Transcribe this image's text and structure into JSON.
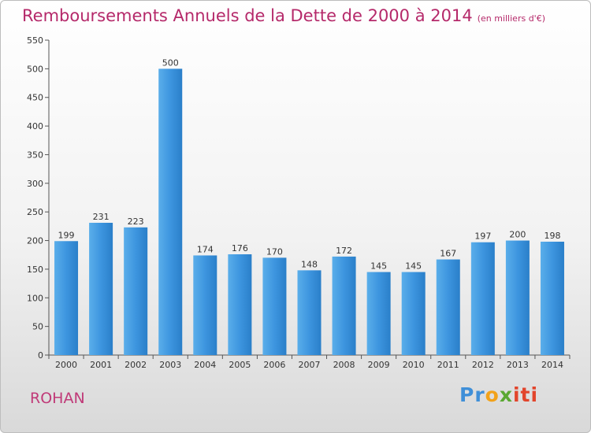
{
  "chart_data": {
    "type": "bar",
    "title": "Remboursements Annuels de la Dette de 2000 à 2014",
    "subtitle": "(en milliers d'€)",
    "categories": [
      "2000",
      "2001",
      "2002",
      "2003",
      "2004",
      "2005",
      "2006",
      "2007",
      "2008",
      "2009",
      "2010",
      "2011",
      "2012",
      "2013",
      "2014"
    ],
    "values": [
      199,
      231,
      223,
      500,
      174,
      176,
      170,
      148,
      172,
      145,
      145,
      167,
      197,
      200,
      198
    ],
    "ylim": [
      0,
      550
    ],
    "yticks": [
      0,
      50,
      100,
      150,
      200,
      250,
      300,
      350,
      400,
      450,
      500,
      550
    ],
    "grid": false,
    "bar_color": "#3a8fd9"
  },
  "footer": {
    "commune": "ROHAN"
  },
  "logo": {
    "parts": [
      "Pr",
      "o",
      "x",
      "iti"
    ]
  }
}
